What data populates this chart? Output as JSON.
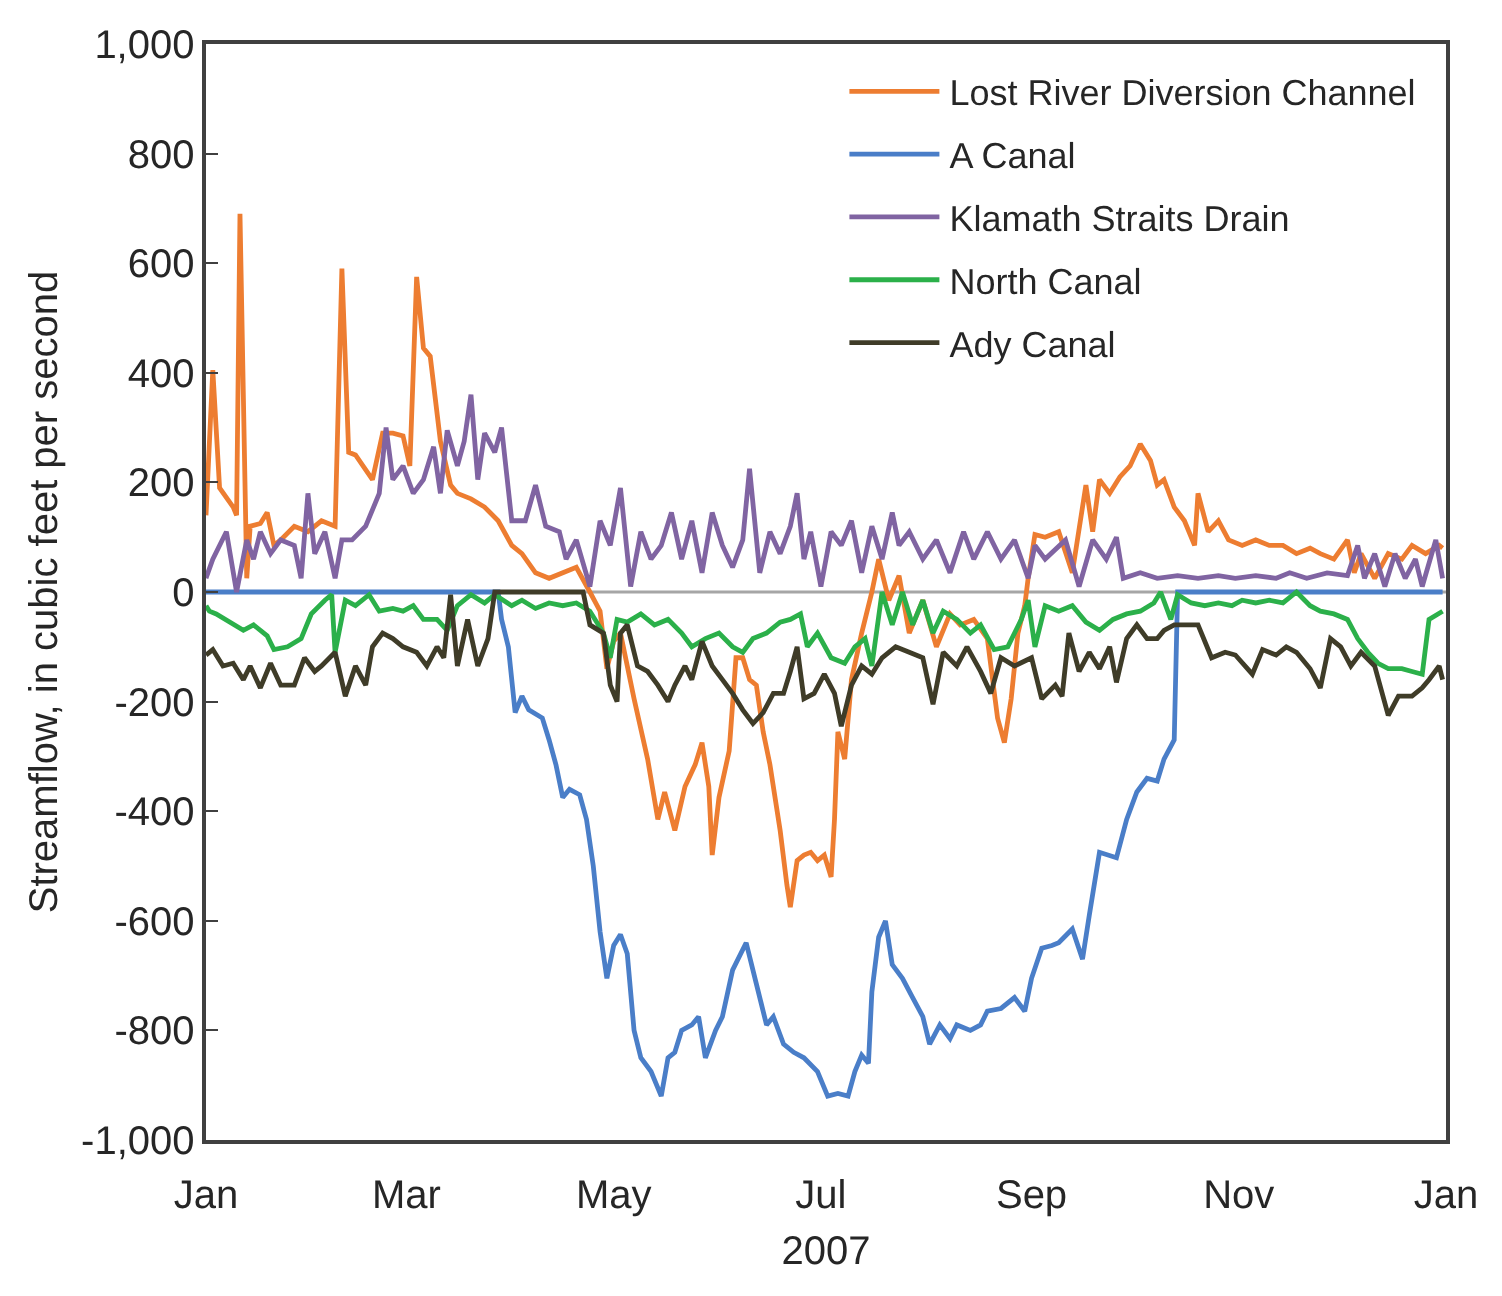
{
  "chart_data": {
    "type": "line",
    "xlabel": "2007",
    "ylabel": "Streamflow, in cubic feet per second",
    "xlim": [
      "2007-01-01",
      "2008-01-01"
    ],
    "xticks": [
      {
        "value": "2007-01-01",
        "label": "Jan"
      },
      {
        "value": "2007-03-01",
        "label": "Mar"
      },
      {
        "value": "2007-05-01",
        "label": "May"
      },
      {
        "value": "2007-07-01",
        "label": "Jul"
      },
      {
        "value": "2007-09-01",
        "label": "Sep"
      },
      {
        "value": "2007-11-01",
        "label": "Nov"
      },
      {
        "value": "2008-01-01",
        "label": "Jan"
      }
    ],
    "ylim": [
      -1000,
      1000
    ],
    "yticks": [
      {
        "value": -1000,
        "label": "-1,000"
      },
      -800,
      -600,
      -400,
      -200,
      0,
      200,
      400,
      600,
      800,
      {
        "value": 1000,
        "label": "1,000"
      }
    ],
    "legend": "top right",
    "ref_lines": [
      {
        "axis": "y",
        "value": 0,
        "color": "#a6a6a6"
      }
    ],
    "series": [
      {
        "name": "Lost River Diversion Channel",
        "color": "#ed7d31",
        "x": [
          "2007-01-01",
          "2007-01-03",
          "2007-01-05",
          "2007-01-09",
          "2007-01-10",
          "2007-01-11",
          "2007-01-13",
          "2007-01-14",
          "2007-01-17",
          "2007-01-19",
          "2007-01-21",
          "2007-01-23",
          "2007-01-27",
          "2007-01-31",
          "2007-02-04",
          "2007-02-08",
          "2007-02-10",
          "2007-02-12",
          "2007-02-14",
          "2007-02-19",
          "2007-02-22",
          "2007-02-25",
          "2007-02-28",
          "2007-03-02",
          "2007-03-04",
          "2007-03-06",
          "2007-03-08",
          "2007-03-11",
          "2007-03-14",
          "2007-03-16",
          "2007-03-20",
          "2007-03-24",
          "2007-03-28",
          "2007-04-01",
          "2007-04-04",
          "2007-04-08",
          "2007-04-12",
          "2007-04-20",
          "2007-04-24",
          "2007-04-27",
          "2007-04-29",
          "2007-05-01",
          "2007-05-03",
          "2007-05-07",
          "2007-05-11",
          "2007-05-14",
          "2007-05-16",
          "2007-05-19",
          "2007-05-22",
          "2007-05-25",
          "2007-05-27",
          "2007-05-29",
          "2007-05-30",
          "2007-06-01",
          "2007-06-04",
          "2007-06-06",
          "2007-06-08",
          "2007-06-10",
          "2007-06-12",
          "2007-06-14",
          "2007-06-16",
          "2007-06-19",
          "2007-06-21",
          "2007-06-22",
          "2007-06-24",
          "2007-06-26",
          "2007-06-28",
          "2007-06-30",
          "2007-07-02",
          "2007-07-04",
          "2007-07-05",
          "2007-07-06",
          "2007-07-08",
          "2007-07-10",
          "2007-07-13",
          "2007-07-16",
          "2007-07-18",
          "2007-07-21",
          "2007-07-24",
          "2007-07-27",
          "2007-07-31",
          "2007-08-04",
          "2007-08-08",
          "2007-08-11",
          "2007-08-15",
          "2007-08-19",
          "2007-08-22",
          "2007-08-24",
          "2007-08-26",
          "2007-08-28",
          "2007-08-30",
          "2007-08-31",
          "2007-09-02",
          "2007-09-05",
          "2007-09-09",
          "2007-09-13",
          "2007-09-17",
          "2007-09-19",
          "2007-09-21",
          "2007-09-24",
          "2007-09-27",
          "2007-09-30",
          "2007-10-03",
          "2007-10-06",
          "2007-10-08",
          "2007-10-10",
          "2007-10-13",
          "2007-10-16",
          "2007-10-19",
          "2007-10-20",
          "2007-10-23",
          "2007-10-26",
          "2007-10-29",
          "2007-11-02",
          "2007-11-06",
          "2007-11-10",
          "2007-11-14",
          "2007-11-18",
          "2007-11-22",
          "2007-11-25",
          "2007-11-29",
          "2007-12-03",
          "2007-12-05",
          "2007-12-07",
          "2007-12-11",
          "2007-12-15",
          "2007-12-19",
          "2007-12-22",
          "2007-12-26",
          "2007-12-30",
          "2007-12-31"
        ],
        "values": [
          140,
          405,
          190,
          155,
          140,
          690,
          25,
          120,
          125,
          145,
          85,
          95,
          120,
          110,
          130,
          120,
          590,
          255,
          250,
          205,
          290,
          290,
          285,
          230,
          575,
          445,
          430,
          275,
          195,
          180,
          170,
          155,
          130,
          85,
          70,
          35,
          25,
          45,
          0,
          -35,
          -140,
          -90,
          -75,
          -195,
          -305,
          -415,
          -365,
          -435,
          -355,
          -315,
          -275,
          -355,
          -480,
          -375,
          -290,
          -120,
          -120,
          -160,
          -170,
          -255,
          -315,
          -435,
          -535,
          -575,
          -490,
          -480,
          -475,
          -490,
          -480,
          -520,
          -415,
          -255,
          -305,
          -160,
          -75,
          0,
          60,
          -15,
          30,
          -75,
          -15,
          -100,
          -40,
          -60,
          -50,
          -85,
          -230,
          -275,
          -195,
          -75,
          -25,
          25,
          105,
          100,
          110,
          35,
          195,
          110,
          205,
          180,
          210,
          230,
          270,
          240,
          195,
          205,
          155,
          130,
          85,
          180,
          110,
          130,
          95,
          85,
          95,
          85,
          85,
          70,
          80,
          70,
          60,
          95,
          35,
          70,
          25,
          70,
          60,
          85,
          70,
          85,
          80
        ]
      },
      {
        "name": "A Canal",
        "color": "#4a7ec8",
        "x": [
          "2007-01-01",
          "2007-03-28",
          "2007-03-29",
          "2007-03-31",
          "2007-04-02",
          "2007-04-04",
          "2007-04-06",
          "2007-04-10",
          "2007-04-12",
          "2007-04-14",
          "2007-04-16",
          "2007-04-18",
          "2007-04-21",
          "2007-04-23",
          "2007-04-25",
          "2007-04-27",
          "2007-04-29",
          "2007-05-01",
          "2007-05-03",
          "2007-05-05",
          "2007-05-07",
          "2007-05-09",
          "2007-05-12",
          "2007-05-15",
          "2007-05-17",
          "2007-05-19",
          "2007-05-21",
          "2007-05-24",
          "2007-05-26",
          "2007-05-28",
          "2007-05-31",
          "2007-06-02",
          "2007-06-05",
          "2007-06-09",
          "2007-06-12",
          "2007-06-15",
          "2007-06-17",
          "2007-06-20",
          "2007-06-23",
          "2007-06-26",
          "2007-06-30",
          "2007-07-03",
          "2007-07-06",
          "2007-07-09",
          "2007-07-11",
          "2007-07-13",
          "2007-07-15",
          "2007-07-16",
          "2007-07-18",
          "2007-07-20",
          "2007-07-22",
          "2007-07-25",
          "2007-07-28",
          "2007-07-31",
          "2007-08-02",
          "2007-08-05",
          "2007-08-08",
          "2007-08-10",
          "2007-08-14",
          "2007-08-17",
          "2007-08-19",
          "2007-08-23",
          "2007-08-27",
          "2007-08-30",
          "2007-09-01",
          "2007-09-04",
          "2007-09-07",
          "2007-09-09",
          "2007-09-13",
          "2007-09-16",
          "2007-09-18",
          "2007-09-21",
          "2007-09-26",
          "2007-09-29",
          "2007-10-02",
          "2007-10-05",
          "2007-10-08",
          "2007-10-10",
          "2007-10-13",
          "2007-10-14",
          "2007-12-31"
        ],
        "values": [
          0,
          0,
          -50,
          -100,
          -220,
          -190,
          -215,
          -230,
          -270,
          -315,
          -375,
          -360,
          -370,
          -415,
          -500,
          -620,
          -705,
          -645,
          -625,
          -660,
          -800,
          -850,
          -875,
          -920,
          -850,
          -840,
          -800,
          -790,
          -775,
          -850,
          -800,
          -775,
          -690,
          -640,
          -715,
          -790,
          -775,
          -825,
          -840,
          -850,
          -875,
          -920,
          -915,
          -920,
          -875,
          -845,
          -860,
          -730,
          -630,
          -600,
          -680,
          -705,
          -740,
          -775,
          -825,
          -790,
          -815,
          -790,
          -800,
          -790,
          -765,
          -760,
          -740,
          -765,
          -705,
          -650,
          -645,
          -640,
          -615,
          -670,
          -590,
          -475,
          -485,
          -415,
          -365,
          -340,
          -345,
          -305,
          -270,
          0,
          0
        ]
      },
      {
        "name": "Klamath Straits Drain",
        "color": "#8064a2",
        "x": [
          "2007-01-01",
          "2007-01-03",
          "2007-01-07",
          "2007-01-10",
          "2007-01-13",
          "2007-01-15",
          "2007-01-17",
          "2007-01-20",
          "2007-01-23",
          "2007-01-27",
          "2007-01-29",
          "2007-01-31",
          "2007-02-02",
          "2007-02-05",
          "2007-02-08",
          "2007-02-10",
          "2007-02-13",
          "2007-02-17",
          "2007-02-21",
          "2007-02-23",
          "2007-02-25",
          "2007-02-28",
          "2007-03-03",
          "2007-03-06",
          "2007-03-09",
          "2007-03-11",
          "2007-03-13",
          "2007-03-16",
          "2007-03-18",
          "2007-03-20",
          "2007-03-22",
          "2007-03-24",
          "2007-03-27",
          "2007-03-29",
          "2007-04-01",
          "2007-04-05",
          "2007-04-08",
          "2007-04-11",
          "2007-04-15",
          "2007-04-17",
          "2007-04-20",
          "2007-04-24",
          "2007-04-27",
          "2007-04-30",
          "2007-05-03",
          "2007-05-06",
          "2007-05-09",
          "2007-05-12",
          "2007-05-15",
          "2007-05-18",
          "2007-05-21",
          "2007-05-24",
          "2007-05-27",
          "2007-05-30",
          "2007-06-02",
          "2007-06-05",
          "2007-06-08",
          "2007-06-10",
          "2007-06-13",
          "2007-06-16",
          "2007-06-19",
          "2007-06-22",
          "2007-06-24",
          "2007-06-26",
          "2007-06-28",
          "2007-07-01",
          "2007-07-04",
          "2007-07-07",
          "2007-07-10",
          "2007-07-13",
          "2007-07-16",
          "2007-07-19",
          "2007-07-22",
          "2007-07-24",
          "2007-07-27",
          "2007-07-31",
          "2007-08-04",
          "2007-08-08",
          "2007-08-12",
          "2007-08-15",
          "2007-08-19",
          "2007-08-23",
          "2007-08-27",
          "2007-08-31",
          "2007-09-02",
          "2007-09-05",
          "2007-09-11",
          "2007-09-15",
          "2007-09-19",
          "2007-09-23",
          "2007-09-26",
          "2007-09-28",
          "2007-10-03",
          "2007-10-08",
          "2007-10-14",
          "2007-10-20",
          "2007-10-26",
          "2007-10-31",
          "2007-11-06",
          "2007-11-12",
          "2007-11-16",
          "2007-11-21",
          "2007-11-27",
          "2007-12-03",
          "2007-12-06",
          "2007-12-08",
          "2007-12-11",
          "2007-12-14",
          "2007-12-17",
          "2007-12-20",
          "2007-12-23",
          "2007-12-25",
          "2007-12-29",
          "2007-12-31"
        ],
        "values": [
          25,
          60,
          110,
          0,
          95,
          60,
          110,
          70,
          95,
          85,
          25,
          180,
          70,
          110,
          25,
          95,
          95,
          120,
          180,
          300,
          205,
          230,
          180,
          205,
          265,
          180,
          295,
          230,
          275,
          360,
          205,
          290,
          255,
          300,
          130,
          130,
          195,
          120,
          110,
          60,
          95,
          10,
          130,
          85,
          190,
          10,
          110,
          60,
          85,
          145,
          60,
          130,
          35,
          145,
          85,
          45,
          95,
          225,
          35,
          110,
          70,
          120,
          180,
          60,
          110,
          10,
          110,
          85,
          130,
          35,
          120,
          60,
          145,
          85,
          110,
          60,
          95,
          35,
          110,
          60,
          110,
          60,
          95,
          25,
          85,
          60,
          95,
          10,
          95,
          60,
          100,
          25,
          35,
          25,
          30,
          25,
          30,
          25,
          30,
          25,
          35,
          25,
          35,
          30,
          85,
          25,
          70,
          10,
          70,
          25,
          60,
          10,
          95,
          25
        ]
      },
      {
        "name": "North Canal",
        "color": "#2bb04a",
        "x": [
          "2007-01-01",
          "2007-01-02",
          "2007-01-04",
          "2007-01-12",
          "2007-01-15",
          "2007-01-19",
          "2007-01-21",
          "2007-01-25",
          "2007-01-29",
          "2007-02-01",
          "2007-02-05",
          "2007-02-07",
          "2007-02-08",
          "2007-02-11",
          "2007-02-14",
          "2007-02-18",
          "2007-02-21",
          "2007-02-25",
          "2007-02-28",
          "2007-03-03",
          "2007-03-06",
          "2007-03-10",
          "2007-03-13",
          "2007-03-16",
          "2007-03-20",
          "2007-03-24",
          "2007-03-27",
          "2007-04-01",
          "2007-04-04",
          "2007-04-08",
          "2007-04-12",
          "2007-04-16",
          "2007-04-20",
          "2007-04-24",
          "2007-04-28",
          "2007-04-30",
          "2007-05-02",
          "2007-05-05",
          "2007-05-09",
          "2007-05-13",
          "2007-05-17",
          "2007-05-21",
          "2007-05-24",
          "2007-05-28",
          "2007-06-01",
          "2007-06-05",
          "2007-06-08",
          "2007-06-11",
          "2007-06-15",
          "2007-06-19",
          "2007-06-22",
          "2007-06-25",
          "2007-06-27",
          "2007-06-30",
          "2007-07-04",
          "2007-07-08",
          "2007-07-11",
          "2007-07-14",
          "2007-07-16",
          "2007-07-19",
          "2007-07-22",
          "2007-07-25",
          "2007-07-28",
          "2007-07-31",
          "2007-08-03",
          "2007-08-06",
          "2007-08-10",
          "2007-08-14",
          "2007-08-17",
          "2007-08-21",
          "2007-08-25",
          "2007-08-29",
          "2007-08-31",
          "2007-09-02",
          "2007-09-05",
          "2007-09-09",
          "2007-09-13",
          "2007-09-17",
          "2007-09-21",
          "2007-09-25",
          "2007-09-29",
          "2007-10-03",
          "2007-10-07",
          "2007-10-09",
          "2007-10-12",
          "2007-10-14",
          "2007-10-18",
          "2007-10-22",
          "2007-10-26",
          "2007-10-30",
          "2007-11-02",
          "2007-11-06",
          "2007-11-10",
          "2007-11-14",
          "2007-11-18",
          "2007-11-22",
          "2007-11-25",
          "2007-11-29",
          "2007-12-03",
          "2007-12-06",
          "2007-12-09",
          "2007-12-12",
          "2007-12-15",
          "2007-12-19",
          "2007-12-22",
          "2007-12-25",
          "2007-12-27",
          "2007-12-31"
        ],
        "values": [
          -25,
          -35,
          -40,
          -70,
          -60,
          -80,
          -105,
          -100,
          -85,
          -40,
          -15,
          -5,
          -110,
          -15,
          -25,
          -5,
          -35,
          -30,
          -35,
          -25,
          -50,
          -50,
          -70,
          -25,
          -5,
          -20,
          -5,
          -25,
          -15,
          -30,
          -20,
          -25,
          -20,
          -35,
          -75,
          -120,
          -50,
          -55,
          -40,
          -60,
          -50,
          -75,
          -100,
          -85,
          -75,
          -100,
          -110,
          -85,
          -75,
          -55,
          -50,
          -40,
          -100,
          -75,
          -120,
          -130,
          -100,
          -85,
          -135,
          0,
          -60,
          0,
          -60,
          -15,
          -75,
          -35,
          -50,
          -75,
          -60,
          -105,
          -100,
          -50,
          -15,
          -100,
          -25,
          -35,
          -25,
          -55,
          -70,
          -50,
          -40,
          -35,
          -20,
          0,
          -50,
          -5,
          -20,
          -25,
          -20,
          -25,
          -15,
          -20,
          -15,
          -20,
          0,
          -25,
          -35,
          -40,
          -50,
          -85,
          -110,
          -130,
          -140,
          -140,
          -145,
          -150,
          -50,
          -35
        ]
      },
      {
        "name": "Ady Canal",
        "color": "#3f3c28",
        "x": [
          "2007-01-01",
          "2007-01-03",
          "2007-01-06",
          "2007-01-09",
          "2007-01-12",
          "2007-01-14",
          "2007-01-17",
          "2007-01-20",
          "2007-01-23",
          "2007-01-27",
          "2007-01-30",
          "2007-02-02",
          "2007-02-04",
          "2007-02-08",
          "2007-02-11",
          "2007-02-14",
          "2007-02-17",
          "2007-02-19",
          "2007-02-22",
          "2007-02-25",
          "2007-02-28",
          "2007-03-04",
          "2007-03-07",
          "2007-03-10",
          "2007-03-12",
          "2007-03-14",
          "2007-03-16",
          "2007-03-19",
          "2007-03-22",
          "2007-03-25",
          "2007-03-27",
          "2007-04-22",
          "2007-04-24",
          "2007-04-28",
          "2007-04-30",
          "2007-05-02",
          "2007-05-03",
          "2007-05-05",
          "2007-05-08",
          "2007-05-11",
          "2007-05-14",
          "2007-05-17",
          "2007-05-19",
          "2007-05-22",
          "2007-05-24",
          "2007-05-27",
          "2007-05-30",
          "2007-06-02",
          "2007-06-05",
          "2007-06-08",
          "2007-06-11",
          "2007-06-14",
          "2007-06-17",
          "2007-06-20",
          "2007-06-22",
          "2007-06-24",
          "2007-06-26",
          "2007-06-29",
          "2007-07-02",
          "2007-07-05",
          "2007-07-07",
          "2007-07-10",
          "2007-07-13",
          "2007-07-16",
          "2007-07-19",
          "2007-07-23",
          "2007-07-27",
          "2007-07-31",
          "2007-08-03",
          "2007-08-06",
          "2007-08-10",
          "2007-08-13",
          "2007-08-17",
          "2007-08-20",
          "2007-08-23",
          "2007-08-27",
          "2007-09-01",
          "2007-09-04",
          "2007-09-08",
          "2007-09-10",
          "2007-09-12",
          "2007-09-15",
          "2007-09-18",
          "2007-09-21",
          "2007-09-24",
          "2007-09-26",
          "2007-09-29",
          "2007-10-02",
          "2007-10-05",
          "2007-10-08",
          "2007-10-10",
          "2007-10-13",
          "2007-10-20",
          "2007-10-24",
          "2007-10-28",
          "2007-10-31",
          "2007-11-05",
          "2007-11-08",
          "2007-11-12",
          "2007-11-15",
          "2007-11-18",
          "2007-11-22",
          "2007-11-25",
          "2007-11-28",
          "2007-12-01",
          "2007-12-04",
          "2007-12-07",
          "2007-12-11",
          "2007-12-15",
          "2007-12-18",
          "2007-12-22",
          "2007-12-25",
          "2007-12-27",
          "2007-12-30",
          "2007-12-31"
        ],
        "values": [
          -115,
          -105,
          -135,
          -130,
          -160,
          -135,
          -175,
          -130,
          -170,
          -170,
          -120,
          -145,
          -135,
          -110,
          -190,
          -135,
          -170,
          -100,
          -75,
          -85,
          -100,
          -110,
          -135,
          -100,
          -120,
          -5,
          -135,
          -50,
          -135,
          -85,
          0,
          0,
          -60,
          -75,
          -170,
          -200,
          -75,
          -60,
          -135,
          -145,
          -170,
          -200,
          -170,
          -135,
          -160,
          -90,
          -135,
          -160,
          -185,
          -215,
          -240,
          -220,
          -185,
          -185,
          -145,
          -100,
          -195,
          -185,
          -150,
          -185,
          -245,
          -170,
          -135,
          -150,
          -120,
          -100,
          -110,
          -120,
          -205,
          -110,
          -135,
          -100,
          -145,
          -185,
          -120,
          -135,
          -120,
          -195,
          -170,
          -190,
          -75,
          -145,
          -110,
          -140,
          -100,
          -165,
          -85,
          -60,
          -85,
          -85,
          -70,
          -60,
          -60,
          -120,
          -110,
          -115,
          -150,
          -105,
          -115,
          -100,
          -110,
          -140,
          -175,
          -85,
          -100,
          -135,
          -110,
          -135,
          -225,
          -190,
          -190,
          -175,
          -160,
          -135,
          -160
        ]
      }
    ]
  }
}
